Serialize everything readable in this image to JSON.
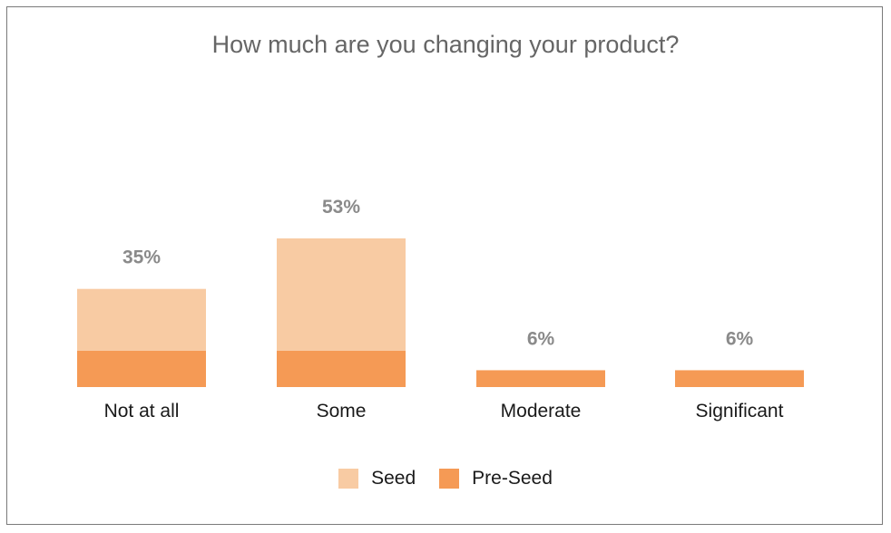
{
  "chart_data": {
    "type": "bar",
    "stacked": true,
    "title": "How much are you changing your product?",
    "categories": [
      "Not at all",
      "Some",
      "Moderate",
      "Significant"
    ],
    "series": [
      {
        "name": "Pre-Seed",
        "color": "#f59a55",
        "values": [
          13,
          13,
          6,
          6
        ]
      },
      {
        "name": "Seed",
        "color": "#f8cba3",
        "values": [
          22,
          40,
          0,
          0
        ]
      }
    ],
    "totals_labels": [
      "35%",
      "53%",
      "6%",
      "6%"
    ],
    "totals": [
      35,
      53,
      6,
      6
    ],
    "ylim": [
      0,
      60
    ],
    "grid": false,
    "legend": "bottom",
    "legend_order": [
      "Seed",
      "Pre-Seed"
    ]
  }
}
